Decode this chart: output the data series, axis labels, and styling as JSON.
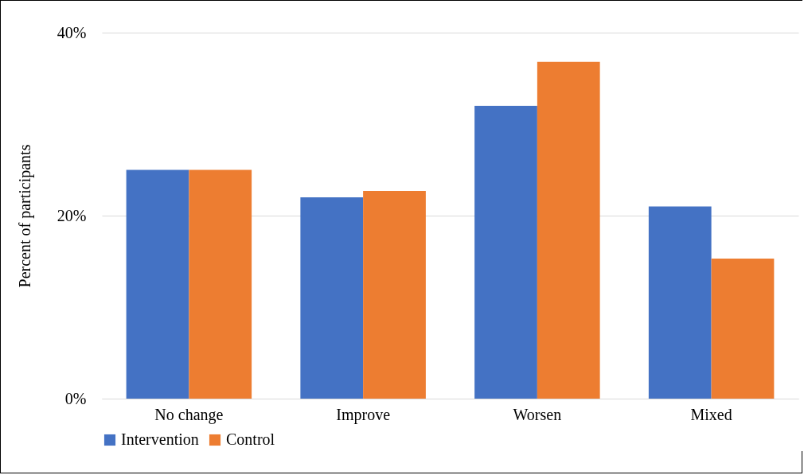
{
  "chart_data": {
    "type": "bar",
    "ylabel": "Percent of participants",
    "categories": [
      "No change",
      "Improve",
      "Worsen",
      "Mixed"
    ],
    "series": [
      {
        "name": "Intervention",
        "color": "#4472c4",
        "values": [
          25,
          22,
          32,
          21
        ]
      },
      {
        "name": "Control",
        "color": "#ed7d31",
        "values": [
          25,
          22.7,
          36.8,
          15.3
        ]
      }
    ],
    "ylim": [
      0,
      40
    ],
    "yticks": [
      {
        "value": 0,
        "label": "0%"
      },
      {
        "value": 20,
        "label": "20%"
      },
      {
        "value": 40,
        "label": "40%"
      }
    ],
    "grid": "y",
    "legend": "bottom"
  }
}
